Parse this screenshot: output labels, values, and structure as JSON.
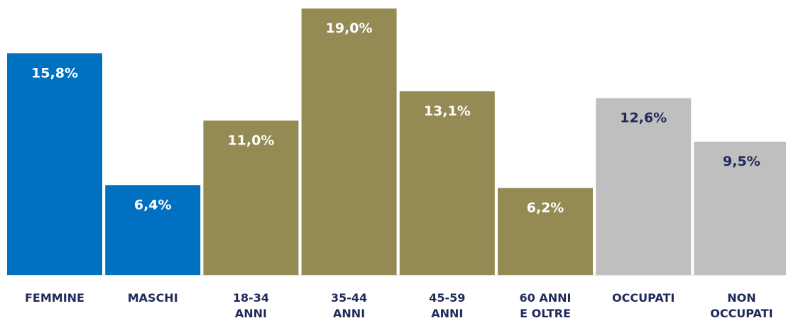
{
  "chart_data": {
    "type": "bar",
    "categories": [
      [
        "FEMMINE"
      ],
      [
        "MASCHI"
      ],
      [
        "18-34",
        "ANNI"
      ],
      [
        "35-44",
        "ANNI"
      ],
      [
        "45-59",
        "ANNI"
      ],
      [
        "60 ANNI",
        "E OLTRE"
      ],
      [
        "OCCUPATI"
      ],
      [
        "NON",
        "OCCUPATI"
      ]
    ],
    "values": [
      15.8,
      6.4,
      11.0,
      19.0,
      13.1,
      6.2,
      12.6,
      9.5
    ],
    "value_labels": [
      "15,8%",
      "6,4%",
      "11,0%",
      "19,0%",
      "13,1%",
      "6,2%",
      "12,6%",
      "9,5%"
    ],
    "bar_colors": [
      "#0070c0",
      "#0070c0",
      "#948a54",
      "#948a54",
      "#948a54",
      "#948a54",
      "#bfbfbf",
      "#bfbfbf"
    ],
    "value_label_colors": [
      "#ffffff",
      "#ffffff",
      "#ffffff",
      "#ffffff",
      "#ffffff",
      "#ffffff",
      "#1f2a5c",
      "#1f2a5c"
    ],
    "category_label_color": "#1f2a5c",
    "title": "",
    "xlabel": "",
    "ylabel": "",
    "ylim": [
      0,
      20
    ],
    "grid": false,
    "legend": "none"
  }
}
